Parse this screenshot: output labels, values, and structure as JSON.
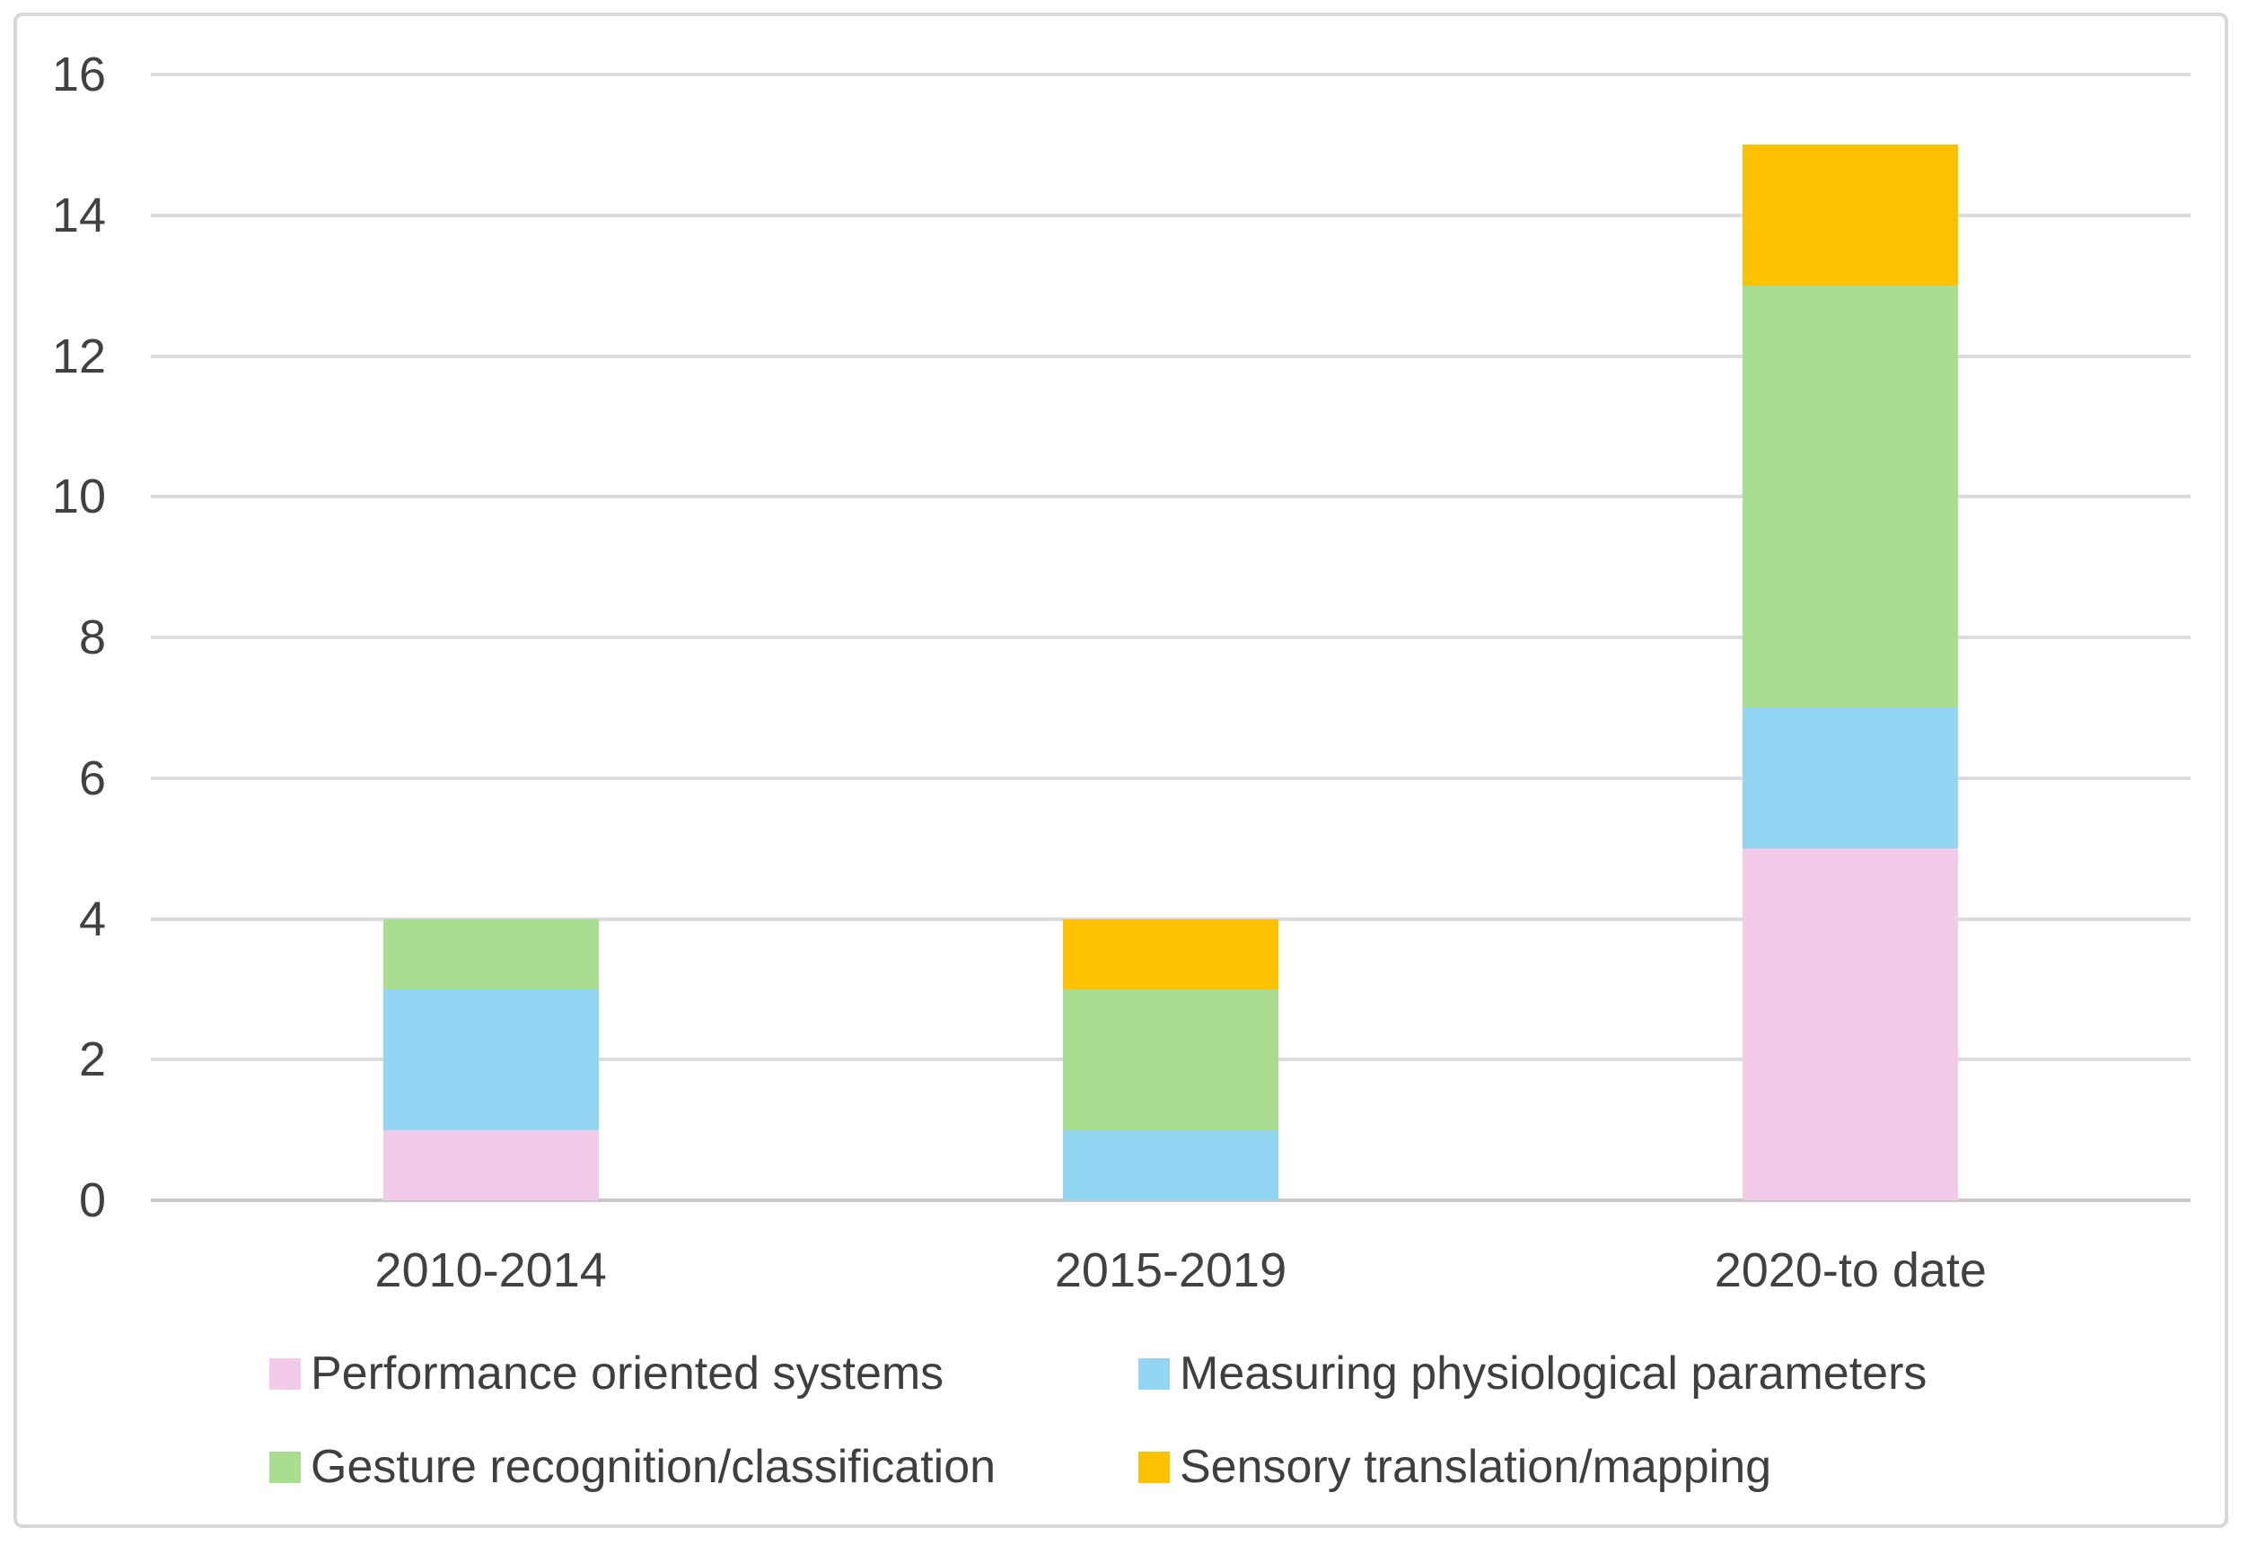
{
  "chart_data": {
    "type": "bar",
    "stacked": true,
    "title": "",
    "xlabel": "",
    "ylabel": "",
    "categories": [
      "2010-2014",
      "2015-2019",
      "2020-to date"
    ],
    "series": [
      {
        "name": "Performance oriented systems",
        "color": "#f3cbea",
        "values": [
          1,
          0,
          5
        ]
      },
      {
        "name": "Measuring physiological parameters",
        "color": "#92d6f3",
        "values": [
          2,
          1,
          2
        ]
      },
      {
        "name": "Gesture recognition/classification",
        "color": "#a9dd90",
        "values": [
          1,
          2,
          6
        ]
      },
      {
        "name": "Sensory translation/mapping",
        "color": "#fdc102",
        "values": [
          0,
          1,
          2
        ]
      }
    ],
    "totals": [
      4,
      4,
      15
    ],
    "ylim": [
      0,
      16
    ],
    "ytick_interval": 2,
    "ytick_labels": [
      "16",
      "14",
      "12",
      "10",
      "8",
      "6",
      "4",
      "2",
      "0"
    ],
    "grid": true,
    "legend_position": "bottom",
    "style_colors": {
      "gridline": "#dcdcdc",
      "zero_line": "#c9c9c9",
      "tick_text": "#414141",
      "frame_border": "#d8d8d8",
      "background": "#ffffff"
    }
  }
}
